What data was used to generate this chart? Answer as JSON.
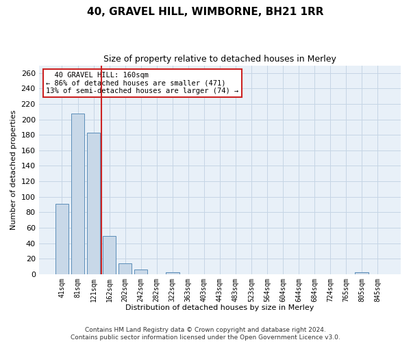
{
  "title": "40, GRAVEL HILL, WIMBORNE, BH21 1RR",
  "subtitle": "Size of property relative to detached houses in Merley",
  "xlabel": "Distribution of detached houses by size in Merley",
  "ylabel": "Number of detached properties",
  "categories": [
    "41sqm",
    "81sqm",
    "121sqm",
    "162sqm",
    "202sqm",
    "242sqm",
    "282sqm",
    "322sqm",
    "363sqm",
    "403sqm",
    "443sqm",
    "483sqm",
    "523sqm",
    "564sqm",
    "604sqm",
    "644sqm",
    "684sqm",
    "724sqm",
    "765sqm",
    "805sqm",
    "845sqm"
  ],
  "values": [
    91,
    208,
    183,
    49,
    14,
    6,
    0,
    2,
    0,
    0,
    0,
    0,
    0,
    0,
    0,
    0,
    0,
    0,
    0,
    2,
    0
  ],
  "bar_color": "#c8d8e8",
  "bar_edge_color": "#5b8db8",
  "vline_color": "#cc2222",
  "vline_pos": 2.5,
  "annotation_text": "  40 GRAVEL HILL: 160sqm\n← 86% of detached houses are smaller (471)\n13% of semi-detached houses are larger (74) →",
  "annotation_box_color": "#cc2222",
  "ylim": [
    0,
    270
  ],
  "yticks": [
    0,
    20,
    40,
    60,
    80,
    100,
    120,
    140,
    160,
    180,
    200,
    220,
    240,
    260
  ],
  "plot_bg": "#e8f0f8",
  "grid_color": "#c5d5e5",
  "title_fontsize": 11,
  "subtitle_fontsize": 9,
  "tick_fontsize": 7,
  "ylabel_fontsize": 8,
  "xlabel_fontsize": 8,
  "footer": "Contains HM Land Registry data © Crown copyright and database right 2024.\nContains public sector information licensed under the Open Government Licence v3.0.",
  "footer_fontsize": 6.5
}
